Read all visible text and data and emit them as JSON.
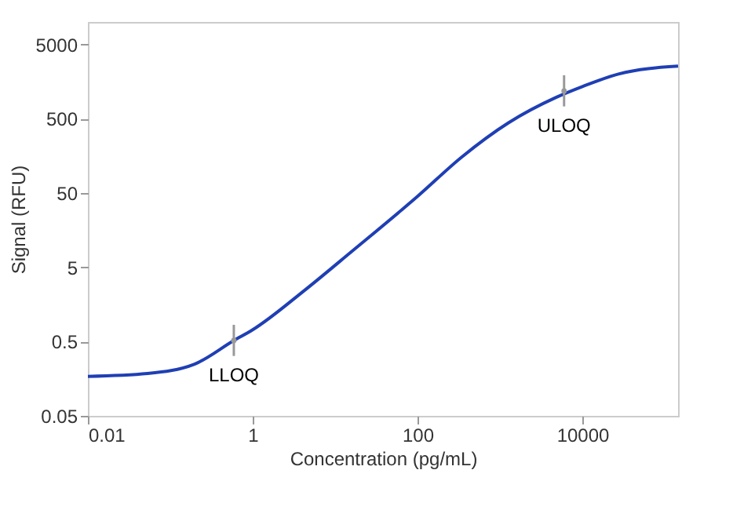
{
  "chart_data": {
    "type": "line",
    "xlabel": "Concentration (pg/mL)",
    "ylabel": "Signal (RFU)",
    "log": "xy",
    "xlim": [
      0.01,
      145000
    ],
    "ylim": [
      0.05,
      10000
    ],
    "xticks": [
      0.01,
      1,
      100,
      10000
    ],
    "yticks": [
      0.05,
      0.5,
      5,
      50,
      500,
      5000
    ],
    "grid": false,
    "marker": "none",
    "line_style": "solid",
    "series": [
      {
        "color": "#1f3fb4",
        "x": [
          0.01,
          0.053,
          0.197,
          0.59,
          1,
          4.25,
          16,
          100,
          341,
          1270,
          4740,
          10000,
          27400,
          145000
        ],
        "values": [
          0.17,
          0.186,
          0.248,
          0.515,
          0.72,
          2.44,
          8.2,
          45,
          151,
          440,
          960,
          1350,
          1990,
          2540
        ]
      },
      {
        "type": "scatter",
        "color": "#999999",
        "marker": "circle",
        "x": [
          0.59,
          6000
        ],
        "values": [
          0.515,
          1180
        ],
        "errors": [
          [
            0.32,
            0.84
          ],
          [
            730,
            1920
          ]
        ]
      }
    ],
    "annotations": [
      {
        "text": "LLOQ",
        "x": 0.59,
        "y": 0.515
      },
      {
        "text": "ULOQ",
        "x": 6000,
        "y": 1180
      }
    ]
  }
}
